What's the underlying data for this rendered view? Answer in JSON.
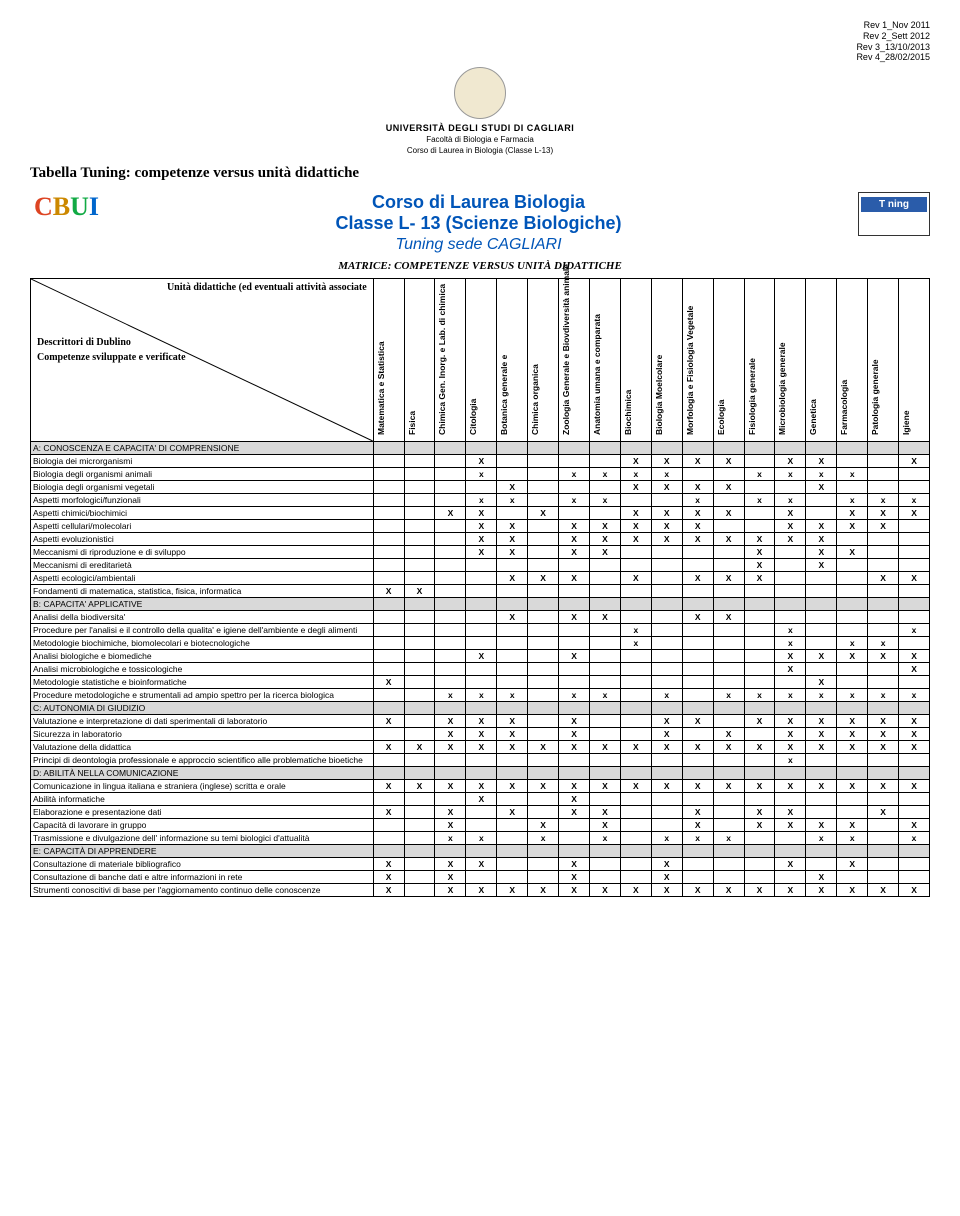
{
  "revisions": [
    "Rev 1_Nov 2011",
    "Rev 2_Sett 2012",
    "Rev 3_13/10/2013",
    "Rev 4_28/02/2015"
  ],
  "university": "UNIVERSITÀ DEGLI STUDI DI CAGLIARI",
  "facolta": "Facoltà di Biologia e Farmacia",
  "corso_sub": "Corso di Laurea in Biologia (Classe L-13)",
  "tabella_title": "Tabella Tuning: competenze versus unità didattiche",
  "course_line1a": "Corso di Laurea Biologia",
  "course_line1b": "Classe L- 13 (Scienze Biologiche)",
  "course_line2": "Tuning sede CAGLIARI",
  "tuning_label": "T  ning",
  "matrice": "MATRICE: COMPETENZE VERSUS UNITÀ DIDATTICHE",
  "diag_top": "Unità didattiche (ed eventuali attività associate",
  "diag_bottom1": "Descrittori di Dublino",
  "diag_bottom2": "Competenze sviluppate e verificate",
  "columns": [
    "Matematica e Statistica",
    "Fisica",
    "Chimica Gen. Inorg. e Lab. di chimica",
    "Citologia",
    "Botanica generale e",
    "Chimica organica",
    "Zoologia Generale e Biovdiversità animale",
    "Anatomia umana e comparata",
    "Biochimica",
    "Biologia Moelcolare",
    "Morfologia e Fisiologia Vegetale",
    "Ecologia",
    "Fisiologia generale",
    "Microbiologia generale",
    "Genetica",
    "Farmacologia",
    "Patologia generale",
    "Igiene"
  ],
  "rows": [
    {
      "label": "A: CONOSCENZA E CAPACITA' DI COMPRENSIONE",
      "section": true,
      "x": []
    },
    {
      "label": "Biologia dei microrganismi",
      "x": [
        4,
        9,
        10,
        11,
        12,
        14,
        15,
        18
      ]
    },
    {
      "label": "Biologia degli organismi animali",
      "lc": true,
      "x": [
        4,
        7,
        8,
        9,
        10,
        13,
        14,
        15,
        16
      ]
    },
    {
      "label": "Biologia degli organismi vegetali",
      "x": [
        5,
        9,
        10,
        11,
        12,
        15
      ]
    },
    {
      "label": "Aspetti morfologici/funzionali",
      "lc": true,
      "x": [
        4,
        5,
        7,
        8,
        11,
        13,
        14,
        16,
        17,
        18
      ]
    },
    {
      "label": "Aspetti chimici/biochimici",
      "x": [
        3,
        4,
        6,
        9,
        10,
        11,
        12,
        14,
        16,
        17,
        18
      ]
    },
    {
      "label": "Aspetti cellulari/molecolari",
      "x": [
        4,
        5,
        7,
        8,
        9,
        10,
        11,
        14,
        15,
        16,
        17
      ]
    },
    {
      "label": "Aspetti evoluzionistici",
      "x": [
        4,
        5,
        7,
        8,
        9,
        10,
        11,
        12,
        13,
        14,
        15
      ]
    },
    {
      "label": "Meccanismi di riproduzione e di sviluppo",
      "x": [
        4,
        5,
        7,
        8,
        13,
        15,
        16
      ]
    },
    {
      "label": "Meccanismi di ereditarietà",
      "x": [
        13,
        15
      ]
    },
    {
      "label": "Aspetti ecologici/ambientali",
      "x": [
        5,
        6,
        7,
        9,
        11,
        12,
        13,
        17,
        18
      ]
    },
    {
      "label": "Fondamenti di matematica, statistica, fisica, informatica",
      "x": [
        1,
        2
      ]
    },
    {
      "label": "B: CAPACITA' APPLICATIVE",
      "section": true,
      "x": []
    },
    {
      "label": "Analisi della biodiversita'",
      "x": [
        5,
        7,
        8,
        11,
        12
      ]
    },
    {
      "label": "Procedure per l'analisi e il controllo della qualita' e igiene dell'ambiente e degli alimenti",
      "lc": true,
      "x": [
        9,
        14,
        18
      ]
    },
    {
      "label": "Metodologie biochimiche, biomolecolari e biotecnologiche",
      "lc": true,
      "x": [
        9,
        14,
        16,
        17
      ]
    },
    {
      "label": "Analisi biologiche e biomediche",
      "x": [
        4,
        7,
        14,
        15,
        16,
        17,
        18
      ]
    },
    {
      "label": "Analisi microbiologiche e tossicologiche",
      "x": [
        14,
        18
      ]
    },
    {
      "label": "Metodologie statistiche e bioinformatiche",
      "x": [
        1,
        15
      ]
    },
    {
      "label": "Procedure metodologiche e strumentali ad ampio spettro per la ricerca biologica",
      "lc": true,
      "x": [
        3,
        4,
        5,
        7,
        8,
        10,
        12,
        13,
        14,
        15,
        16,
        17,
        18
      ]
    },
    {
      "label": "C: AUTONOMIA DI GIUDIZIO",
      "section": true,
      "x": []
    },
    {
      "label": "Valutazione e interpretazione di dati sperimentali di laboratorio",
      "x": [
        1,
        3,
        4,
        5,
        7,
        10,
        11,
        13,
        14,
        15,
        16,
        17,
        18
      ]
    },
    {
      "label": "Sicurezza in laboratorio",
      "x": [
        3,
        4,
        5,
        7,
        10,
        12,
        14,
        15,
        16,
        17,
        18
      ]
    },
    {
      "label": "Valutazione della didattica",
      "x": [
        1,
        2,
        3,
        4,
        5,
        6,
        7,
        8,
        9,
        10,
        11,
        12,
        13,
        14,
        15,
        16,
        17,
        18
      ]
    },
    {
      "label": "Principi di deontologia professionale e approccio scientifico alle problematiche bioetiche",
      "lc": true,
      "x": [
        14
      ]
    },
    {
      "label": "D: ABILITÀ NELLA COMUNICAZIONE",
      "section": true,
      "x": []
    },
    {
      "label": "Comunicazione in lingua italiana e straniera (inglese) scritta e orale",
      "x": [
        1,
        2,
        3,
        4,
        5,
        6,
        7,
        8,
        9,
        10,
        11,
        12,
        13,
        14,
        15,
        16,
        17,
        18
      ]
    },
    {
      "label": "Abilità informatiche",
      "x": [
        4,
        7
      ]
    },
    {
      "label": "Elaborazione e presentazione dati",
      "x": [
        1,
        3,
        5,
        7,
        8,
        11,
        13,
        14,
        17
      ]
    },
    {
      "label": "Capacità di lavorare in gruppo",
      "x": [
        3,
        6,
        8,
        11,
        13,
        14,
        15,
        16,
        18
      ]
    },
    {
      "label": "Trasmissione e divulgazione dell' informazione su temi biologici d'attualità",
      "lc": true,
      "x": [
        3,
        4,
        6,
        8,
        10,
        11,
        12,
        15,
        16,
        18
      ]
    },
    {
      "label": "E: CAPACITÀ DI APPRENDERE",
      "section": true,
      "x": []
    },
    {
      "label": "Consultazione di materiale bibliografico",
      "x": [
        1,
        3,
        4,
        7,
        10,
        14,
        16
      ]
    },
    {
      "label": "Consultazione di banche dati e altre informazioni in rete",
      "x": [
        1,
        3,
        7,
        10,
        15
      ]
    },
    {
      "label": "Strumenti conoscitivi di base per l'aggiornamento continuo delle conoscenze",
      "x": [
        1,
        3,
        4,
        5,
        6,
        7,
        8,
        9,
        10,
        11,
        12,
        13,
        14,
        15,
        16,
        17,
        18
      ]
    }
  ]
}
